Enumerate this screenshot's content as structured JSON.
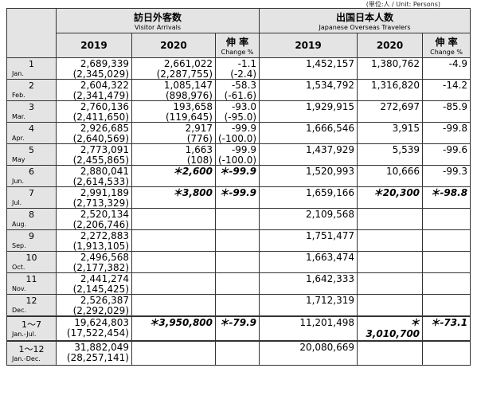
{
  "unit_note": "(単位:人 / Unit: Persons)",
  "header": {
    "visitor": {
      "title": "訪日外客数",
      "subtitle": "Visitor Arrivals"
    },
    "outbound": {
      "title": "出国日本人数",
      "subtitle": "Japanese Overseas Travelers"
    },
    "columns": [
      {
        "label": "2019"
      },
      {
        "label": "2020"
      },
      {
        "label": "伸 率",
        "sublabel": "Change %"
      },
      {
        "label": "2019"
      },
      {
        "label": "2020"
      },
      {
        "label": "伸 率",
        "sublabel": "Change %"
      }
    ]
  },
  "rows": [
    [
      "1",
      "Jan.",
      "2,689,339",
      "(2,345,029)",
      "2,661,022",
      "(2,287,755)",
      "-1.1",
      "(-2.4)",
      "1,452,157",
      "1,380,762",
      "-4.9"
    ],
    [
      "2",
      "Feb.",
      "2,604,322",
      "(2,341,479)",
      "1,085,147",
      "(898,976)",
      "-58.3",
      "(-61.6)",
      "1,534,792",
      "1,316,820",
      "-14.2"
    ],
    [
      "3",
      "Mar.",
      "2,760,136",
      "(2,411,650)",
      "193,658",
      "(119,645)",
      "-93.0",
      "(-95.0)",
      "1,929,915",
      "272,697",
      "-85.9"
    ],
    [
      "4",
      "Apr.",
      "2,926,685",
      "(2,640,569)",
      "2,917",
      "(776)",
      "-99.9",
      "(-100.0)",
      "1,666,546",
      "3,915",
      "-99.8"
    ],
    [
      "5",
      "May",
      "2,773,091",
      "(2,455,865)",
      "1,663",
      "(108)",
      "-99.9",
      "(-100.0)",
      "1,437,929",
      "5,539",
      "-99.6"
    ],
    [
      "6",
      "Jun.",
      "2,880,041",
      "(2,614,533)",
      "＊2,600",
      null,
      "＊-99.9",
      null,
      "1,520,993",
      "10,666",
      "-99.3"
    ],
    [
      "7",
      "Jul.",
      "2,991,189",
      "(2,713,329)",
      "＊3,800",
      null,
      "＊-99.9",
      null,
      "1,659,166",
      "＊20,300",
      "＊-98.8"
    ],
    [
      "8",
      "Aug.",
      "2,520,134",
      "(2,206,746)",
      null,
      null,
      null,
      null,
      "2,109,568",
      null,
      null
    ],
    [
      "9",
      "Sep.",
      "2,272,883",
      "(1,913,105)",
      null,
      null,
      null,
      null,
      "1,751,477",
      null,
      null
    ],
    [
      "10",
      "Oct.",
      "2,496,568",
      "(2,177,382)",
      null,
      null,
      null,
      null,
      "1,663,474",
      null,
      null
    ],
    [
      "11",
      "Nov.",
      "2,441,274",
      "(2,145,425)",
      null,
      null,
      null,
      null,
      "1,642,333",
      null,
      null
    ],
    [
      "12",
      "Dec.",
      "2,526,387",
      "(2,292,029)",
      null,
      null,
      null,
      null,
      "1,712,319",
      null,
      null
    ],
    [
      "1～7",
      "Jan.-Jul.",
      "19,624,803",
      "(17,522,454)",
      "＊3,950,800",
      null,
      "＊-79.9",
      null,
      "11,201,498",
      "＊3,010,700",
      "＊-73.1"
    ],
    [
      "1～12",
      "Jan.-Dec.",
      "31,882,049",
      "(28,257,141)",
      null,
      null,
      null,
      null,
      "20,080,669",
      null,
      null
    ]
  ]
}
